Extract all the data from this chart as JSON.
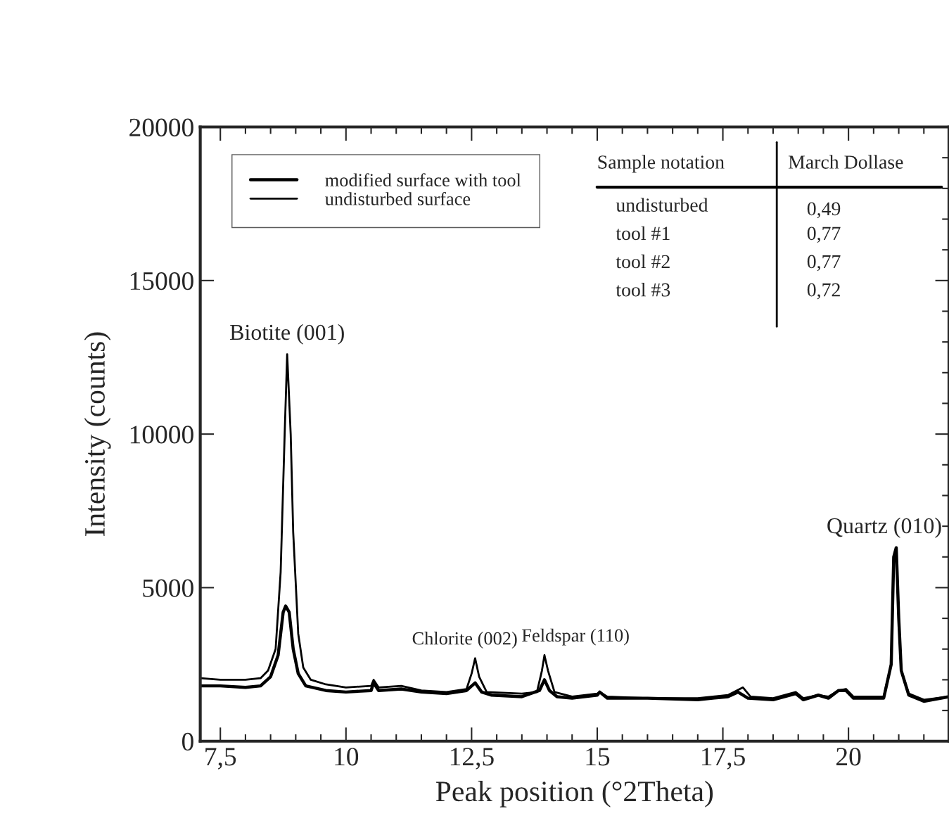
{
  "chart_data": {
    "type": "line",
    "xlabel": "Peak position (°2Theta)",
    "ylabel": "Intensity (counts)",
    "xlim": [
      7.1,
      22
    ],
    "ylim": [
      0,
      20000
    ],
    "xticks": [
      {
        "value": 7.5,
        "label": "7,5"
      },
      10,
      {
        "value": 12.5,
        "label": "12,5"
      },
      15,
      {
        "value": 17.5,
        "label": "17,5"
      },
      20
    ],
    "yticks": [
      0,
      5000,
      10000,
      15000,
      20000
    ],
    "grid": false,
    "legend": "top left",
    "line_style": "solid",
    "marker": "none",
    "series": [
      {
        "name": "modified surface with tool",
        "color": "#000000",
        "x": [
          7.1,
          7.5,
          8.0,
          8.3,
          8.5,
          8.65,
          8.75,
          8.8,
          8.87,
          8.95,
          9.05,
          9.2,
          9.6,
          10,
          10.5,
          10.55,
          10.65,
          11.1,
          11.5,
          12,
          12.4,
          12.57,
          12.7,
          12.9,
          13.5,
          13.85,
          13.95,
          14.05,
          14.2,
          14.5,
          15,
          15.05,
          15.2,
          16,
          17,
          17.6,
          17.8,
          18,
          18.5,
          18.95,
          19.1,
          19.4,
          19.6,
          19.8,
          19.95,
          20.1,
          20.7,
          20.85,
          20.9,
          20.95,
          21.0,
          21.05,
          21.2,
          21.5,
          22
        ],
        "values": [
          1800,
          1800,
          1750,
          1800,
          2100,
          2800,
          4200,
          4400,
          4200,
          3000,
          2200,
          1800,
          1650,
          1600,
          1650,
          1900,
          1650,
          1700,
          1600,
          1550,
          1650,
          1900,
          1600,
          1500,
          1450,
          1650,
          2000,
          1650,
          1450,
          1400,
          1500,
          1600,
          1400,
          1400,
          1350,
          1450,
          1600,
          1400,
          1350,
          1550,
          1350,
          1500,
          1400,
          1650,
          1650,
          1400,
          1400,
          2500,
          6000,
          6300,
          4000,
          2300,
          1500,
          1300,
          1450
        ]
      },
      {
        "name": "undisturbed surface",
        "color": "#000000",
        "x": [
          7.1,
          7.5,
          8.0,
          8.3,
          8.45,
          8.6,
          8.7,
          8.78,
          8.83,
          8.9,
          8.95,
          9.05,
          9.15,
          9.3,
          9.6,
          10,
          10.5,
          10.55,
          10.65,
          11.1,
          11.5,
          12,
          12.4,
          12.5,
          12.57,
          12.65,
          12.8,
          13.5,
          13.8,
          13.9,
          13.95,
          14.02,
          14.15,
          14.5,
          15,
          15.05,
          15.2,
          16,
          17,
          17.6,
          17.9,
          18.05,
          18.5,
          18.95,
          19.1,
          19.4,
          19.6,
          19.8,
          19.95,
          20.1,
          20.7,
          20.85,
          20.9,
          20.95,
          21.0,
          21.05,
          21.2,
          21.5,
          22
        ],
        "values": [
          2050,
          2000,
          2000,
          2050,
          2300,
          3000,
          5500,
          10000,
          12600,
          10000,
          6800,
          3500,
          2400,
          2000,
          1850,
          1750,
          1800,
          2000,
          1750,
          1800,
          1650,
          1600,
          1700,
          2200,
          2700,
          2100,
          1600,
          1550,
          1600,
          2300,
          2800,
          2300,
          1600,
          1450,
          1550,
          1600,
          1450,
          1400,
          1400,
          1500,
          1750,
          1450,
          1400,
          1600,
          1400,
          1500,
          1450,
          1650,
          1700,
          1450,
          1450,
          2500,
          6000,
          6300,
          4000,
          2300,
          1550,
          1350,
          1450
        ]
      }
    ],
    "annotations": [
      {
        "text": "Biotite (001)",
        "x": 8.83,
        "y": 12600
      },
      {
        "text": "Chlorite (002)",
        "x": 12.57,
        "y": 2700
      },
      {
        "text": "Feldspar (110)",
        "x": 13.95,
        "y": 2800
      },
      {
        "text": "Quartz (010)",
        "x": 20.95,
        "y": 6300
      },
      "Sample notation",
      "March Dollase",
      "undisturbed",
      "0,49",
      "tool #1",
      "0,77",
      "tool #2",
      "0,77",
      "tool #3",
      "0,72"
    ]
  }
}
